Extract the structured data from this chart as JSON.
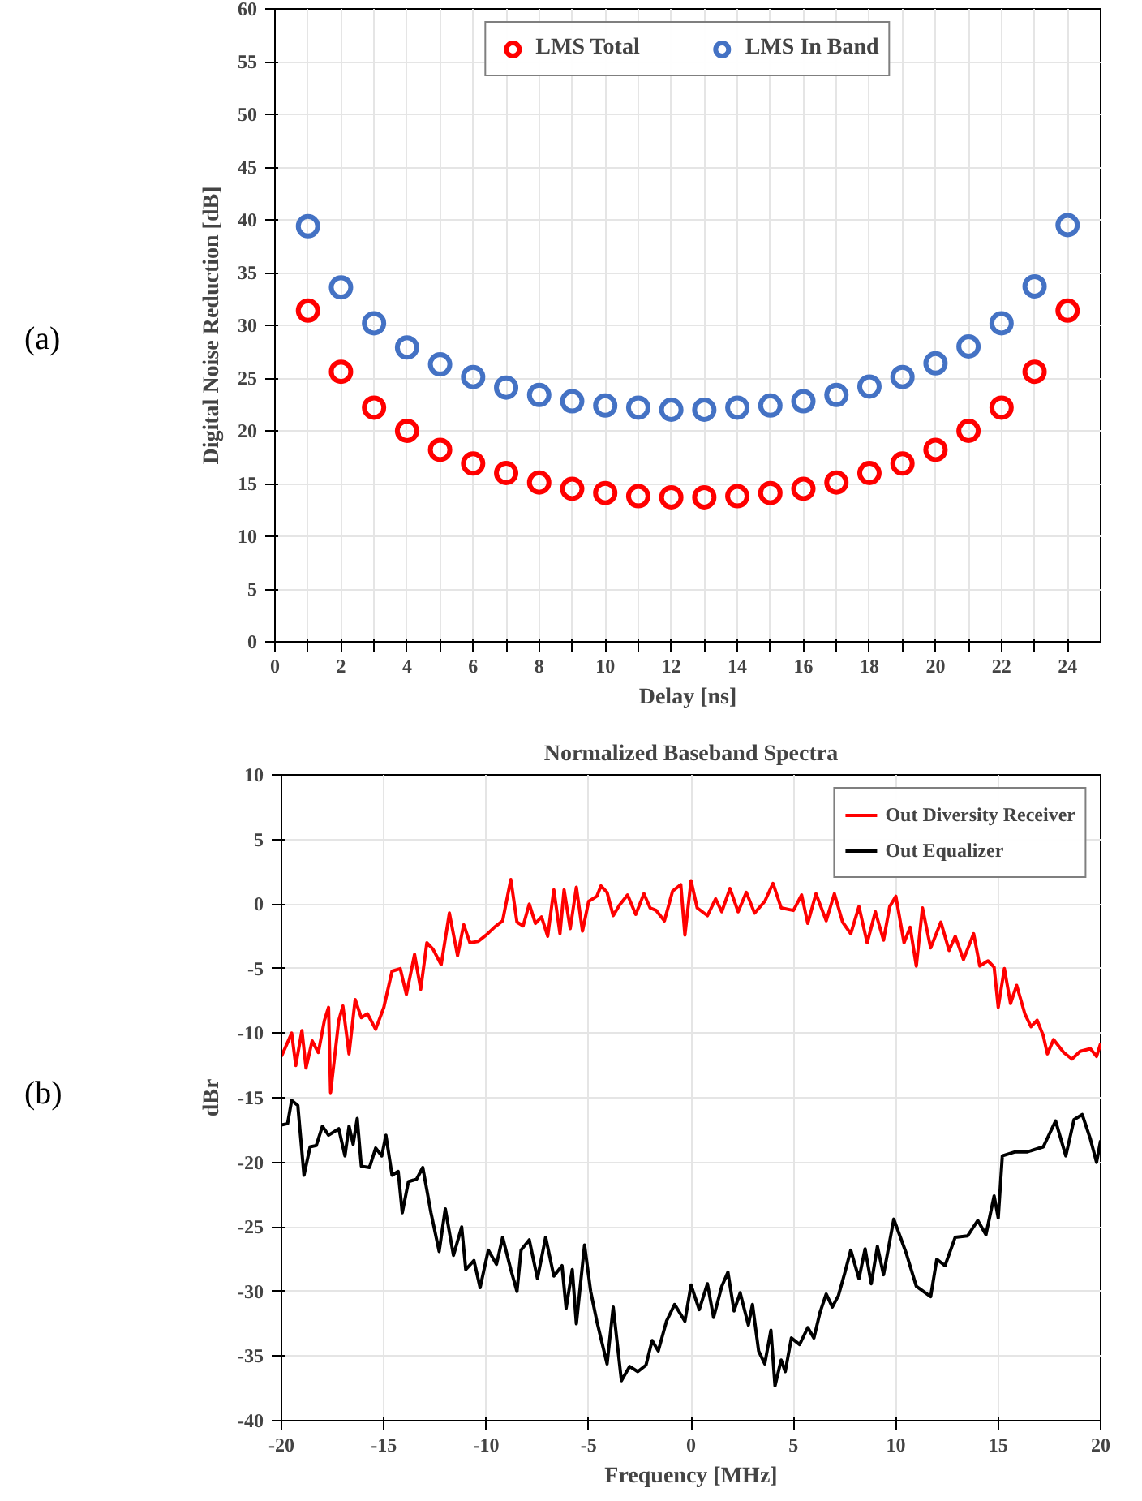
{
  "chart_data": [
    {
      "type": "scatter",
      "xlabel": "Delay [ns]",
      "ylabel": "Digital Noise Reduction [dB]",
      "annotations": [
        "(a)"
      ],
      "marker": "circle",
      "legend": "top",
      "grid": true,
      "x": [
        1,
        2,
        3,
        4,
        5,
        6,
        7,
        8,
        9,
        10,
        11,
        12,
        13,
        14,
        15,
        16,
        17,
        18,
        19,
        20,
        21,
        22,
        23,
        24
      ],
      "xlim": [
        0,
        25
      ],
      "ylim": [
        0,
        60
      ],
      "xticks": [
        0,
        {
          "value": 1,
          "label": null
        },
        2,
        {
          "value": 3,
          "label": null
        },
        4,
        {
          "value": 5,
          "label": null
        },
        6,
        {
          "value": 7,
          "label": null
        },
        8,
        {
          "value": 9,
          "label": null
        },
        10,
        {
          "value": 11,
          "label": null
        },
        12,
        {
          "value": 13,
          "label": null
        },
        14,
        {
          "value": 15,
          "label": null
        },
        16,
        {
          "value": 17,
          "label": null
        },
        18,
        {
          "value": 19,
          "label": null
        },
        20,
        {
          "value": 21,
          "label": null
        },
        22,
        {
          "value": 23,
          "label": null
        },
        24
      ],
      "yticks": [
        0,
        5,
        10,
        15,
        20,
        25,
        30,
        35,
        40,
        45,
        50,
        55,
        60
      ],
      "series": [
        {
          "name": "LMS Total",
          "color": "#ff0000",
          "values": [
            31.4,
            25.6,
            22.2,
            20.0,
            18.2,
            16.9,
            16.0,
            15.1,
            14.5,
            14.1,
            13.8,
            13.7,
            13.7,
            13.8,
            14.1,
            14.5,
            15.1,
            16.0,
            16.9,
            18.2,
            20.0,
            22.2,
            25.6,
            31.4
          ]
        },
        {
          "name": "LMS In Band",
          "color": "#4472c4",
          "values": [
            39.4,
            33.6,
            30.2,
            27.9,
            26.3,
            25.1,
            24.1,
            23.4,
            22.8,
            22.4,
            22.2,
            22.0,
            22.0,
            22.2,
            22.4,
            22.8,
            23.4,
            24.2,
            25.1,
            26.4,
            28.0,
            30.2,
            33.7,
            39.5
          ]
        }
      ]
    },
    {
      "type": "line",
      "title": "Normalized Baseband Spectra",
      "xlabel": "Frequency [MHz]",
      "ylabel": "dBr",
      "annotations": [
        "(b)"
      ],
      "legend": "top right",
      "grid": true,
      "xlim": [
        -20,
        20
      ],
      "ylim": [
        -40,
        10
      ],
      "xticks": [
        -20,
        -15,
        -10,
        -5,
        0,
        5,
        10,
        15,
        20
      ],
      "yticks": [
        -40,
        -35,
        -30,
        -25,
        -20,
        -15,
        -10,
        -5,
        0,
        5,
        10
      ],
      "series": [
        {
          "name": "Out Diversity Receiver",
          "color": "#ff0000",
          "x": [
            -20,
            -19.5,
            -19.3,
            -19,
            -18.8,
            -18.5,
            -18.2,
            -17.9,
            -17.7,
            -17.6,
            -17.2,
            -17.0,
            -16.7,
            -16.4,
            -16.1,
            -15.8,
            -15.4,
            -15,
            -14.6,
            -14.2,
            -13.9,
            -13.5,
            -13.2,
            -12.9,
            -12.6,
            -12.2,
            -11.8,
            -11.4,
            -11.1,
            -10.8,
            -10.4,
            -10,
            -9.6,
            -9.2,
            -8.8,
            -8.5,
            -8.2,
            -7.9,
            -7.6,
            -7.3,
            -7.0,
            -6.7,
            -6.4,
            -6.2,
            -5.9,
            -5.6,
            -5.3,
            -5.0,
            -4.6,
            -4.4,
            -4.1,
            -3.8,
            -3.5,
            -3.1,
            -2.7,
            -2.3,
            -2.0,
            -1.7,
            -1.3,
            -0.9,
            -0.5,
            -0.3,
            0,
            0.3,
            0.8,
            1.2,
            1.5,
            1.9,
            2.3,
            2.7,
            3.1,
            3.6,
            4,
            4.4,
            5,
            5.4,
            5.7,
            6.1,
            6.6,
            7,
            7.4,
            7.8,
            8.2,
            8.6,
            9,
            9.4,
            9.7,
            10,
            10.4,
            10.7,
            11,
            11.3,
            11.7,
            12.2,
            12.6,
            12.9,
            13.3,
            13.8,
            14.1,
            14.5,
            14.8,
            15,
            15.3,
            15.6,
            15.9,
            16.3,
            16.6,
            16.9,
            17.2,
            17.4,
            17.7,
            18.2,
            18.6,
            19,
            19.5,
            19.8,
            20
          ],
          "values": [
            -11.8,
            -10,
            -12.5,
            -9.8,
            -12.7,
            -10.6,
            -11.5,
            -9,
            -8,
            -14.6,
            -9,
            -7.9,
            -11.6,
            -7.4,
            -8.8,
            -8.5,
            -9.7,
            -8,
            -5.2,
            -5,
            -7,
            -3.9,
            -6.6,
            -3,
            -3.5,
            -4.7,
            -0.7,
            -4,
            -1.6,
            -3,
            -2.9,
            -2.4,
            -1.8,
            -1.3,
            1.9,
            -1.4,
            -1.7,
            0,
            -1.5,
            -1,
            -2.5,
            1.1,
            -2.3,
            1.1,
            -1.9,
            1.3,
            -2.1,
            0.2,
            0.6,
            1.4,
            0.9,
            -0.9,
            -0.1,
            0.7,
            -0.8,
            0.8,
            -0.3,
            -0.5,
            -1.3,
            1.0,
            1.5,
            -2.4,
            1.8,
            -0.3,
            -0.9,
            0.4,
            -0.6,
            1.2,
            -0.6,
            0.9,
            -0.7,
            0.2,
            1.6,
            -0.3,
            -0.5,
            0.7,
            -1.5,
            0.8,
            -1.3,
            0.8,
            -1.4,
            -2.3,
            -0.2,
            -3,
            -0.6,
            -2.8,
            -0.2,
            0.6,
            -3,
            -1.8,
            -4.8,
            -0.3,
            -3.4,
            -1.4,
            -3.6,
            -2.5,
            -4.3,
            -2.3,
            -4.8,
            -4.4,
            -4.9,
            -8,
            -5,
            -7.7,
            -6.3,
            -8.5,
            -9.5,
            -9,
            -10.2,
            -11.6,
            -10.5,
            -11.5,
            -12,
            -11.4,
            -11.2,
            -11.8,
            -10.8
          ]
        },
        {
          "name": "Out Equalizer",
          "color": "#000000",
          "x": [
            -20,
            -19.7,
            -19.5,
            -19.2,
            -18.9,
            -18.6,
            -18.3,
            -18,
            -17.7,
            -17.2,
            -16.9,
            -16.7,
            -16.5,
            -16.3,
            -16.1,
            -15.7,
            -15.4,
            -15.1,
            -14.9,
            -14.6,
            -14.3,
            -14.1,
            -13.8,
            -13.4,
            -13.1,
            -12.7,
            -12.3,
            -12,
            -11.6,
            -11.2,
            -11,
            -10.6,
            -10.3,
            -9.9,
            -9.5,
            -9.2,
            -8.8,
            -8.5,
            -8.3,
            -7.9,
            -7.5,
            -7.1,
            -6.7,
            -6.3,
            -6.1,
            -5.8,
            -5.6,
            -5.2,
            -4.9,
            -4.6,
            -4.1,
            -3.8,
            -3.4,
            -3.0,
            -2.6,
            -2.2,
            -1.9,
            -1.6,
            -1.2,
            -0.8,
            -0.3,
            0,
            0.4,
            0.8,
            1.1,
            1.5,
            1.8,
            2.1,
            2.4,
            2.8,
            3.0,
            3.3,
            3.6,
            3.9,
            4.1,
            4.4,
            4.6,
            4.9,
            5.3,
            5.7,
            6.0,
            6.3,
            6.6,
            6.9,
            7.2,
            7.5,
            7.8,
            8.2,
            8.5,
            8.8,
            9.1,
            9.4,
            9.9,
            10.5,
            11.0,
            11.7,
            12.0,
            12.4,
            12.9,
            13.5,
            14.0,
            14.4,
            14.8,
            15.0,
            15.2,
            15.8,
            16.4,
            17.2,
            17.8,
            18.3,
            18.7,
            19.1,
            19.5,
            19.8,
            20
          ],
          "values": [
            -17.1,
            -17,
            -15.2,
            -15.6,
            -21,
            -18.8,
            -18.7,
            -17.2,
            -17.9,
            -17.4,
            -19.5,
            -17.2,
            -18.6,
            -16.6,
            -20.3,
            -20.4,
            -18.9,
            -19.5,
            -17.9,
            -21,
            -20.7,
            -23.9,
            -21.5,
            -21.3,
            -20.4,
            -23.9,
            -26.9,
            -23.6,
            -27.2,
            -25,
            -28.3,
            -27.6,
            -29.7,
            -26.8,
            -27.9,
            -25.8,
            -28.3,
            -30,
            -26.8,
            -26,
            -29,
            -25.8,
            -28.8,
            -28,
            -31.3,
            -28.3,
            -32.5,
            -26.4,
            -30,
            -32.3,
            -35.6,
            -31.2,
            -36.9,
            -35.8,
            -36.2,
            -35.7,
            -33.8,
            -34.6,
            -32.3,
            -31,
            -32.3,
            -29.5,
            -31.4,
            -29.4,
            -32,
            -29.6,
            -28.5,
            -31.5,
            -30.1,
            -32.6,
            -31,
            -34.6,
            -35.6,
            -33,
            -37.3,
            -35.3,
            -36.2,
            -33.6,
            -34.1,
            -32.8,
            -33.6,
            -31.6,
            -30.2,
            -31.2,
            -30.3,
            -28.6,
            -26.8,
            -29,
            -26.7,
            -29.4,
            -26.5,
            -28.7,
            -24.4,
            -27,
            -29.6,
            -30.4,
            -27.5,
            -28,
            -25.8,
            -25.7,
            -24.5,
            -25.6,
            -22.6,
            -24.3,
            -19.5,
            -19.2,
            -19.2,
            -18.8,
            -16.8,
            -19.5,
            -16.7,
            -16.3,
            -18.2,
            -20,
            -18.3
          ]
        }
      ]
    }
  ]
}
